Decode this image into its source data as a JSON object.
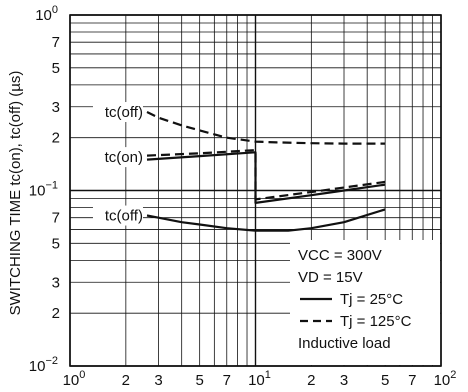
{
  "chart_data": {
    "type": "line",
    "title": "",
    "xlabel": "",
    "ylabel": "SWITCHING TIME  tc(on), tc(off) (µs)",
    "x_scale": "log",
    "y_scale": "log",
    "xlim": [
      1,
      100
    ],
    "ylim": [
      0.01,
      1
    ],
    "grid": true,
    "x_ticks": [
      {
        "base": "10",
        "exp": "0"
      },
      {
        "base": "2"
      },
      {
        "base": "3"
      },
      {
        "base": "5"
      },
      {
        "base": "7"
      },
      {
        "base": "10",
        "exp": "1"
      },
      {
        "base": "2"
      },
      {
        "base": "3"
      },
      {
        "base": "5"
      },
      {
        "base": "7"
      },
      {
        "base": "10",
        "exp": "2"
      }
    ],
    "y_ticks": [
      {
        "base": "10",
        "exp": "0"
      },
      {
        "base": "7"
      },
      {
        "base": "5"
      },
      {
        "base": "3"
      },
      {
        "base": "2"
      },
      {
        "base": "10",
        "exp": "−1"
      },
      {
        "base": "7"
      },
      {
        "base": "5"
      },
      {
        "base": "3"
      },
      {
        "base": "2"
      },
      {
        "base": "10",
        "exp": "−2"
      }
    ],
    "series": [
      {
        "name": "tc(off) Tj = 125°C",
        "style": "dashed",
        "points": [
          [
            2.6,
            0.28
          ],
          [
            3,
            0.26
          ],
          [
            4,
            0.235
          ],
          [
            5,
            0.22
          ],
          [
            7,
            0.2
          ],
          [
            10,
            0.19
          ],
          [
            13,
            0.188
          ],
          [
            20,
            0.186
          ],
          [
            30,
            0.185
          ],
          [
            50,
            0.185
          ]
        ]
      },
      {
        "name": "tc(on) Tj = 125°C",
        "style": "dashed",
        "points": [
          [
            2.6,
            0.158
          ],
          [
            5,
            0.163
          ],
          [
            10,
            0.17
          ],
          [
            10,
            0.089
          ],
          [
            20,
            0.098
          ],
          [
            30,
            0.104
          ],
          [
            50,
            0.112
          ]
        ]
      },
      {
        "name": "tc(on) Tj = 25°C",
        "style": "solid",
        "points": [
          [
            2.6,
            0.15
          ],
          [
            5,
            0.157
          ],
          [
            10,
            0.165
          ],
          [
            10,
            0.085
          ],
          [
            20,
            0.094
          ],
          [
            30,
            0.1
          ],
          [
            50,
            0.108
          ]
        ]
      },
      {
        "name": "tc(off) Tj = 25°C",
        "style": "solid",
        "points": [
          [
            2.6,
            0.072
          ],
          [
            3,
            0.07
          ],
          [
            4,
            0.066
          ],
          [
            5,
            0.064
          ],
          [
            7,
            0.061
          ],
          [
            10,
            0.059
          ],
          [
            15,
            0.059
          ],
          [
            20,
            0.061
          ],
          [
            30,
            0.066
          ],
          [
            50,
            0.078
          ]
        ]
      }
    ],
    "curve_labels": [
      {
        "text": "tc(off)",
        "x": 2.6,
        "y": 0.28
      },
      {
        "text": "tc(on)",
        "x": 2.6,
        "y": 0.155
      },
      {
        "text": "tc(off)",
        "x": 2.6,
        "y": 0.072
      }
    ],
    "legend": {
      "conditions": [
        "VCC = 300V",
        "VD = 15V"
      ],
      "entries": [
        {
          "style": "solid",
          "label": "Tj = 25°C"
        },
        {
          "style": "dashed",
          "label": "Tj = 125°C"
        }
      ],
      "note": "Inductive load",
      "position": "bottom-right"
    }
  }
}
